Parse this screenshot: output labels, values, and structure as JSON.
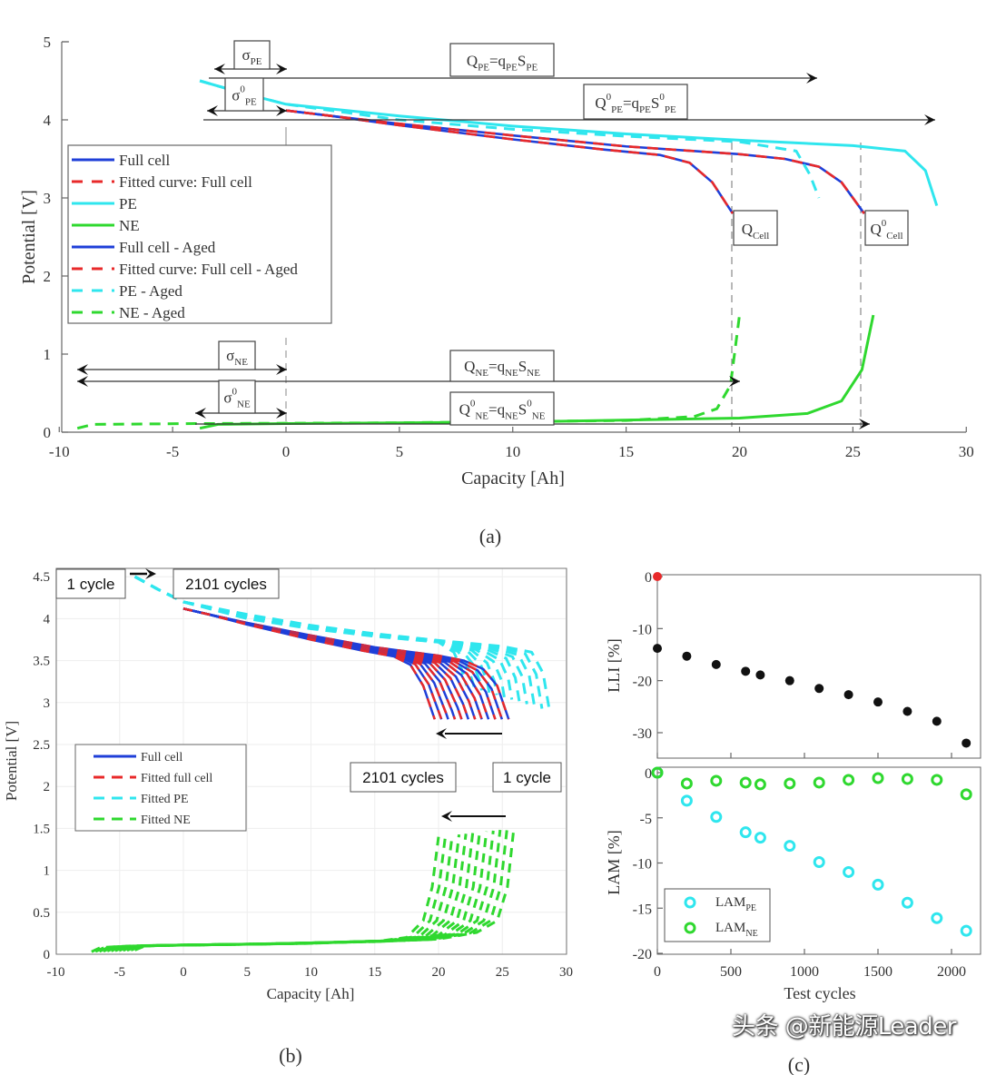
{
  "captions": {
    "a": "(a)",
    "b": "(b)",
    "c": "(c)"
  },
  "watermark": "头条 @新能源Leader",
  "colors": {
    "full_cell": "#1f3fd8",
    "fitted": "#e8292a",
    "pe": "#2fe6ee",
    "ne": "#2fd82f",
    "lli": "#111111",
    "lli_ref": "#e8292a"
  },
  "chart_data": [
    {
      "id": "a",
      "type": "line",
      "xlabel": "Capacity [Ah]",
      "ylabel": "Potential [V]",
      "xlim": [
        -10,
        30
      ],
      "ylim": [
        0,
        5
      ],
      "xticks": [
        "-10",
        "-5",
        "0",
        "5",
        "10",
        "15",
        "20",
        "25",
        "30"
      ],
      "yticks": [
        "0",
        "1",
        "2",
        "3",
        "4",
        "5"
      ],
      "grid": false,
      "legend_position": "middle-left",
      "series": [
        {
          "name": "Full cell",
          "color": "#1f3fd8",
          "style": "solid",
          "points": [
            [
              0,
              4.12
            ],
            [
              2,
              4.05
            ],
            [
              5,
              3.95
            ],
            [
              10,
              3.8
            ],
            [
              15,
              3.66
            ],
            [
              20,
              3.56
            ],
            [
              22,
              3.5
            ],
            [
              23.5,
              3.4
            ],
            [
              24.5,
              3.2
            ],
            [
              25.5,
              2.8
            ]
          ]
        },
        {
          "name": "Fitted curve: Full cell",
          "color": "#e8292a",
          "style": "dashed",
          "points": [
            [
              0,
              4.12
            ],
            [
              2,
              4.05
            ],
            [
              5,
              3.95
            ],
            [
              10,
              3.8
            ],
            [
              15,
              3.66
            ],
            [
              20,
              3.56
            ],
            [
              22,
              3.5
            ],
            [
              23.5,
              3.4
            ],
            [
              24.5,
              3.2
            ],
            [
              25.5,
              2.8
            ]
          ]
        },
        {
          "name": "PE",
          "color": "#2fe6ee",
          "style": "solid",
          "points": [
            [
              -3.8,
              4.5
            ],
            [
              -2,
              4.35
            ],
            [
              0,
              4.2
            ],
            [
              5,
              4.05
            ],
            [
              10,
              3.92
            ],
            [
              15,
              3.82
            ],
            [
              20,
              3.74
            ],
            [
              25,
              3.67
            ],
            [
              27.3,
              3.6
            ],
            [
              28.2,
              3.35
            ],
            [
              28.7,
              2.9
            ]
          ]
        },
        {
          "name": "NE",
          "color": "#2fd82f",
          "style": "solid",
          "points": [
            [
              -3.8,
              0.05
            ],
            [
              -3,
              0.1
            ],
            [
              0,
              0.11
            ],
            [
              10,
              0.13
            ],
            [
              20,
              0.18
            ],
            [
              23,
              0.24
            ],
            [
              24.5,
              0.4
            ],
            [
              25.4,
              0.8
            ],
            [
              25.9,
              1.5
            ]
          ]
        },
        {
          "name": "Full cell - Aged",
          "color": "#1f3fd8",
          "style": "solid",
          "points": [
            [
              0,
              4.12
            ],
            [
              2,
              4.05
            ],
            [
              5,
              3.93
            ],
            [
              10,
              3.75
            ],
            [
              14,
              3.62
            ],
            [
              16.5,
              3.55
            ],
            [
              17.8,
              3.45
            ],
            [
              18.8,
              3.2
            ],
            [
              19.7,
              2.8
            ]
          ]
        },
        {
          "name": "Fitted curve: Full cell - Aged",
          "color": "#e8292a",
          "style": "dashed",
          "points": [
            [
              0,
              4.12
            ],
            [
              2,
              4.05
            ],
            [
              5,
              3.93
            ],
            [
              10,
              3.75
            ],
            [
              14,
              3.62
            ],
            [
              16.5,
              3.55
            ],
            [
              17.8,
              3.45
            ],
            [
              18.8,
              3.2
            ],
            [
              19.7,
              2.8
            ]
          ]
        },
        {
          "name": "PE - Aged",
          "color": "#2fe6ee",
          "style": "dashed",
          "points": [
            [
              -3.8,
              4.5
            ],
            [
              -2,
              4.35
            ],
            [
              0,
              4.2
            ],
            [
              5,
              4.0
            ],
            [
              10,
              3.88
            ],
            [
              15,
              3.79
            ],
            [
              20,
              3.72
            ],
            [
              22.5,
              3.6
            ],
            [
              23.1,
              3.3
            ],
            [
              23.5,
              3.0
            ]
          ]
        },
        {
          "name": "NE - Aged",
          "color": "#2fd82f",
          "style": "dashed",
          "points": [
            [
              -9.2,
              0.05
            ],
            [
              -8.5,
              0.1
            ],
            [
              -4,
              0.11
            ],
            [
              5,
              0.12
            ],
            [
              15,
              0.15
            ],
            [
              18,
              0.2
            ],
            [
              19,
              0.3
            ],
            [
              19.6,
              0.6
            ],
            [
              20,
              1.5
            ]
          ]
        }
      ],
      "annotations": [
        {
          "id": "sigma_pe",
          "parts": [
            [
              "σ",
              ""
            ],
            [
              "PE",
              "sub"
            ]
          ]
        },
        {
          "id": "sigma0_pe",
          "parts": [
            [
              "σ",
              ""
            ],
            [
              "0",
              "sup"
            ],
            [
              "PE",
              "sub"
            ]
          ]
        },
        {
          "id": "q_pe",
          "parts": [
            [
              "Q",
              ""
            ],
            [
              "PE",
              "sub"
            ],
            [
              "=q",
              ""
            ],
            [
              "PE",
              "sub"
            ],
            [
              "S",
              ""
            ],
            [
              "PE",
              "sub"
            ]
          ]
        },
        {
          "id": "q0_pe",
          "parts": [
            [
              "Q",
              ""
            ],
            [
              "0",
              "sup"
            ],
            [
              "PE",
              "sub"
            ],
            [
              "=q",
              ""
            ],
            [
              "PE",
              "sub"
            ],
            [
              "S",
              ""
            ],
            [
              "0",
              "sup"
            ],
            [
              "PE",
              "sub"
            ]
          ]
        },
        {
          "id": "q_cell",
          "parts": [
            [
              "Q",
              ""
            ],
            [
              "Cell",
              "sub"
            ]
          ]
        },
        {
          "id": "q0_cell",
          "parts": [
            [
              "Q",
              ""
            ],
            [
              "0",
              "sup"
            ],
            [
              "Cell",
              "sub"
            ]
          ]
        },
        {
          "id": "sigma_ne",
          "parts": [
            [
              "σ",
              ""
            ],
            [
              "NE",
              "sub"
            ]
          ]
        },
        {
          "id": "sigma0_ne",
          "parts": [
            [
              "σ",
              ""
            ],
            [
              "0",
              "sup"
            ],
            [
              "NE",
              "sub"
            ]
          ]
        },
        {
          "id": "q_ne",
          "parts": [
            [
              "Q",
              ""
            ],
            [
              "NE",
              "sub"
            ],
            [
              "=q",
              ""
            ],
            [
              "NE",
              "sub"
            ],
            [
              "S",
              ""
            ],
            [
              "NE",
              "sub"
            ]
          ]
        },
        {
          "id": "q0_ne",
          "parts": [
            [
              "Q",
              ""
            ],
            [
              "0",
              "sup"
            ],
            [
              "NE",
              "sub"
            ],
            [
              "=q",
              ""
            ],
            [
              "NE",
              "sub"
            ],
            [
              "S",
              ""
            ],
            [
              "0",
              "sup"
            ],
            [
              "NE",
              "sub"
            ]
          ]
        }
      ]
    },
    {
      "id": "b",
      "type": "line",
      "xlabel": "Capacity [Ah]",
      "ylabel": "Potential [V]",
      "xlim": [
        -10,
        30
      ],
      "ylim": [
        0,
        4.6
      ],
      "xticks": [
        "-10",
        "-5",
        "0",
        "5",
        "10",
        "15",
        "20",
        "25",
        "30"
      ],
      "yticks": [
        "0",
        "0.5",
        "1",
        "1.5",
        "2",
        "2.5",
        "3",
        "3.5",
        "4",
        "4.5"
      ],
      "grid": true,
      "legend_position": "middle-left",
      "legend": [
        {
          "name": "Full cell",
          "color": "#1f3fd8",
          "style": "solid"
        },
        {
          "name": "Fitted full cell",
          "color": "#e8292a",
          "style": "dashed"
        },
        {
          "name": "Fitted PE",
          "color": "#2fe6ee",
          "style": "dashed"
        },
        {
          "name": "Fitted NE",
          "color": "#2fd82f",
          "style": "dashed"
        }
      ],
      "curve_families": {
        "full_cell": {
          "first": [
            [
              0,
              4.12
            ],
            [
              2,
              4.05
            ],
            [
              5,
              3.95
            ],
            [
              10,
              3.8
            ],
            [
              15,
              3.66
            ],
            [
              20,
              3.56
            ],
            [
              22,
              3.5
            ],
            [
              23.5,
              3.4
            ],
            [
              24.6,
              3.2
            ],
            [
              25.5,
              2.8
            ]
          ],
          "last": [
            [
              0,
              4.12
            ],
            [
              2,
              4.05
            ],
            [
              5,
              3.93
            ],
            [
              10,
              3.75
            ],
            [
              14,
              3.62
            ],
            [
              16.5,
              3.55
            ],
            [
              17.8,
              3.45
            ],
            [
              18.8,
              3.2
            ],
            [
              19.7,
              2.8
            ]
          ]
        },
        "pe": {
          "first": [
            [
              -3.8,
              4.5
            ],
            [
              -2,
              4.35
            ],
            [
              0,
              4.2
            ],
            [
              5,
              4.05
            ],
            [
              10,
              3.92
            ],
            [
              15,
              3.82
            ],
            [
              20,
              3.74
            ],
            [
              25,
              3.67
            ],
            [
              27.3,
              3.6
            ],
            [
              28.2,
              3.35
            ],
            [
              28.7,
              2.9
            ]
          ],
          "last": [
            [
              -3.8,
              4.5
            ],
            [
              -2,
              4.35
            ],
            [
              0,
              4.2
            ],
            [
              5,
              4.0
            ],
            [
              10,
              3.88
            ],
            [
              15,
              3.79
            ],
            [
              20,
              3.72
            ],
            [
              21.2,
              3.6
            ],
            [
              21.8,
              3.4
            ],
            [
              22.2,
              3.2
            ]
          ]
        },
        "ne": {
          "first": [
            [
              -3.8,
              0.05
            ],
            [
              -3,
              0.1
            ],
            [
              0,
              0.11
            ],
            [
              10,
              0.13
            ],
            [
              20,
              0.18
            ],
            [
              23,
              0.26
            ],
            [
              24.6,
              0.4
            ],
            [
              25.4,
              0.8
            ],
            [
              25.9,
              1.5
            ]
          ],
          "last": [
            [
              -7.2,
              0.03
            ],
            [
              -6.5,
              0.08
            ],
            [
              -4,
              0.1
            ],
            [
              5,
              0.12
            ],
            [
              15,
              0.15
            ],
            [
              17.5,
              0.2
            ],
            [
              18.8,
              0.4
            ],
            [
              19.5,
              0.8
            ],
            [
              20,
              1.4
            ]
          ]
        }
      },
      "annotations": {
        "top_left": "1 cycle",
        "top_right": "2101 cycles",
        "mid_left": "2101 cycles",
        "mid_right": "1 cycle"
      }
    },
    {
      "id": "c_top",
      "type": "scatter",
      "xlabel": "",
      "ylabel": "LLI [%]",
      "xlim": [
        0,
        2200
      ],
      "ylim": [
        -35,
        0
      ],
      "xticks": [],
      "yticks": [
        "0",
        "-10",
        "-20",
        "-30"
      ],
      "grid": false,
      "series": [
        {
          "color": "#e8292a",
          "x": [
            0
          ],
          "y": [
            0
          ]
        },
        {
          "color": "#111111",
          "x": [
            0,
            200,
            400,
            600,
            700,
            900,
            1100,
            1300,
            1500,
            1700,
            1900,
            2100
          ],
          "y": [
            -13.8,
            -15.3,
            -16.9,
            -18.2,
            -18.9,
            -20,
            -21.5,
            -22.7,
            -24.1,
            -25.9,
            -27.8,
            -32
          ]
        }
      ]
    },
    {
      "id": "c_bottom",
      "type": "scatter",
      "xlabel": "Test cycles",
      "ylabel": "LAM [%]",
      "xlim": [
        0,
        2200
      ],
      "ylim": [
        -20,
        0
      ],
      "xticks": [
        "0",
        "500",
        "1000",
        "1500",
        "2000"
      ],
      "yticks": [
        "0",
        "-5",
        "-10",
        "-15",
        "-20"
      ],
      "grid": false,
      "legend_position": "bottom-left",
      "series": [
        {
          "name": "LAM_PE",
          "label_main": "LAM",
          "label_sub": "PE",
          "color": "#2fe6ee",
          "x": [
            0,
            200,
            400,
            600,
            700,
            900,
            1100,
            1300,
            1500,
            1700,
            1900,
            2100
          ],
          "y": [
            0,
            -3.1,
            -4.9,
            -6.6,
            -7.2,
            -8.1,
            -9.9,
            -11,
            -12.4,
            -14.4,
            -16.1,
            -17.5
          ]
        },
        {
          "name": "LAM_NE",
          "label_main": "LAM",
          "label_sub": "NE",
          "color": "#2fd82f",
          "x": [
            0,
            200,
            400,
            600,
            700,
            900,
            1100,
            1300,
            1500,
            1700,
            1900,
            2100
          ],
          "y": [
            0,
            -1.2,
            -0.9,
            -1.1,
            -1.3,
            -1.2,
            -1.1,
            -0.8,
            -0.6,
            -0.7,
            -0.8,
            -2.4
          ]
        }
      ]
    }
  ]
}
